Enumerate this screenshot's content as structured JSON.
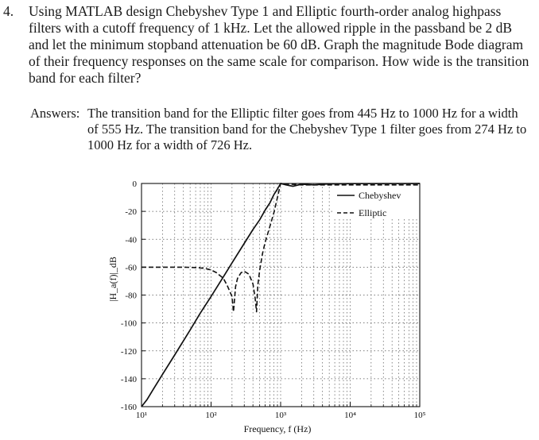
{
  "problem": {
    "number": "4.",
    "text": "Using MATLAB design Chebyshev Type 1 and Elliptic fourth-order analog highpass filters with a cutoff frequency of 1 kHz. Let the allowed ripple in the passband be 2 dB and let the minimum stopband attenuation be 60 dB. Graph the magnitude Bode diagram of their frequency responses on the same scale for comparison. How wide is the transition band for each filter?"
  },
  "answers": {
    "label": "Answers:",
    "text": "The transition band for the Elliptic filter goes from 445 Hz to 1000 Hz for a width of 555 Hz. The transition band for the Chebyshev Type 1 filter goes from 274 Hz to 1000 Hz for a width of 726 Hz."
  },
  "chart_data": {
    "type": "line",
    "xlabel": "Frequency, f (Hz)",
    "ylabel": "|H_a(f)|_dB",
    "xscale": "log",
    "xlim": [
      10,
      100000
    ],
    "ylim": [
      -160,
      0
    ],
    "xticks": [
      "10¹",
      "10²",
      "10³",
      "10⁴",
      "10⁵"
    ],
    "yticks": [
      "0",
      "-20",
      "-40",
      "-60",
      "-80",
      "-100",
      "-120",
      "-140",
      "-160"
    ],
    "grid": true,
    "legend_position": "top-right",
    "series": [
      {
        "name": "Chebyshev",
        "style": "solid",
        "x": [
          10,
          12,
          15,
          20,
          30,
          50,
          70,
          100,
          150,
          200,
          300,
          400,
          500,
          600,
          700,
          800,
          900,
          1000,
          1200,
          1500,
          2000,
          3000,
          5000,
          10000,
          100000
        ],
        "y": [
          -160,
          -155,
          -147,
          -137,
          -123,
          -105,
          -93,
          -81,
          -67,
          -57,
          -43,
          -33,
          -26,
          -19,
          -14,
          -8,
          -4,
          0,
          -1,
          -2,
          -0.5,
          -1,
          -0.3,
          -0.1,
          0
        ]
      },
      {
        "name": "Elliptic",
        "style": "dashed",
        "x": [
          10,
          20,
          40,
          60,
          80,
          100,
          120,
          150,
          170,
          200,
          210,
          225,
          240,
          270,
          300,
          350,
          400,
          430,
          450,
          470,
          500,
          550,
          600,
          700,
          800,
          900,
          1000,
          2000,
          100000
        ],
        "y": [
          -60,
          -60,
          -60,
          -60.3,
          -60.8,
          -62,
          -64,
          -68,
          -73,
          -81,
          -92,
          -74,
          -68,
          -64,
          -63,
          -65,
          -72,
          -82,
          -92,
          -73,
          -62,
          -50,
          -42,
          -31,
          -21,
          -10,
          0,
          -1,
          -1
        ]
      }
    ]
  }
}
